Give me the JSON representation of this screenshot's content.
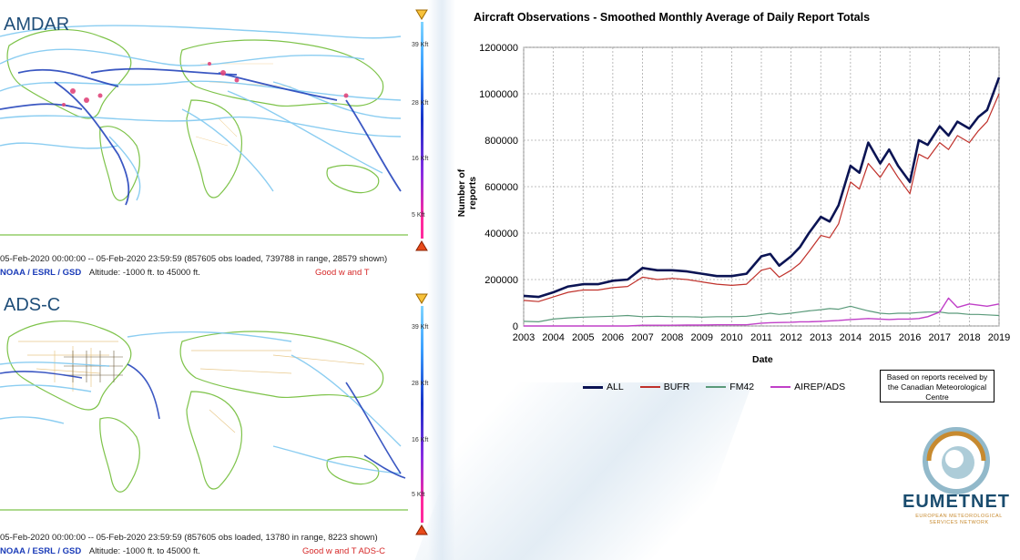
{
  "maps": [
    {
      "title": "AMDAR",
      "meta_line_1": "05-Feb-2020 00:00:00 -- 05-Feb-2020 23:59:59 (857605 obs loaded, 739788 in range, 28579 shown)",
      "source": "NOAA / ESRL / GSD",
      "altitude": "Altitude: -1000 ft. to 45000 ft.",
      "quality": "Good w and T",
      "alt_labels": [
        "39 Kft",
        "28 Kft",
        "16 Kft",
        "5 Kft"
      ]
    },
    {
      "title": "ADS-C",
      "meta_line_1": "05-Feb-2020 00:00:00 -- 05-Feb-2020 23:59:59 (857605 obs loaded, 13780 in range, 8223 shown)",
      "source": "NOAA / ESRL / GSD",
      "altitude": "Altitude: -1000 ft. to 45000 ft.",
      "quality": "Good w and T ADS-C",
      "alt_labels": [
        "39 Kft",
        "28 Kft",
        "16 Kft",
        "5 Kft"
      ]
    }
  ],
  "note": {
    "line1": "Based on reports received by",
    "line2": "the Canadian Meteorological",
    "line3": "Centre"
  },
  "logo": {
    "name": "EUMETNET",
    "subtitle": "EUROPEAN METEOROLOGICAL SERVICES NETWORK"
  },
  "colors": {
    "ALL": "#0b1454",
    "BUFR": "#c0312b",
    "FM42": "#5a9a7a",
    "AIREP/ADS": "#c040c8",
    "map_land": "#7ec34a",
    "flight_light": "#7fc8f0",
    "flight_dark": "#1a3bb8"
  },
  "chart_data": {
    "type": "line",
    "title": "Aircraft Observations - Smoothed Monthly  Average of Daily Report Totals",
    "xlabel": "Date",
    "ylabel": "Number of reports",
    "xlim": [
      2003,
      2019
    ],
    "ylim": [
      0,
      1200000
    ],
    "x_ticks": [
      "2003",
      "2004",
      "2005",
      "2006",
      "2007",
      "2008",
      "2009",
      "2010",
      "2011",
      "2012",
      "2013",
      "2014",
      "2015",
      "2016",
      "2017",
      "2018",
      "2019"
    ],
    "y_ticks": [
      "0",
      "200000",
      "400000",
      "600000",
      "800000",
      "1000000",
      "1200000"
    ],
    "grid": true,
    "legend": "bottom",
    "x": [
      2003.0,
      2003.5,
      2004.0,
      2004.5,
      2005.0,
      2005.5,
      2006.0,
      2006.5,
      2007.0,
      2007.5,
      2008.0,
      2008.5,
      2009.0,
      2009.5,
      2010.0,
      2010.5,
      2011.0,
      2011.3,
      2011.6,
      2012.0,
      2012.3,
      2012.6,
      2013.0,
      2013.3,
      2013.6,
      2014.0,
      2014.3,
      2014.6,
      2015.0,
      2015.3,
      2015.6,
      2016.0,
      2016.3,
      2016.6,
      2017.0,
      2017.3,
      2017.6,
      2018.0,
      2018.3,
      2018.6,
      2019.0
    ],
    "series": [
      {
        "name": "ALL",
        "values": [
          130000,
          125000,
          145000,
          170000,
          180000,
          180000,
          195000,
          200000,
          250000,
          240000,
          240000,
          235000,
          225000,
          215000,
          215000,
          225000,
          300000,
          310000,
          260000,
          300000,
          340000,
          400000,
          470000,
          450000,
          520000,
          690000,
          660000,
          790000,
          700000,
          760000,
          690000,
          620000,
          800000,
          780000,
          860000,
          820000,
          880000,
          850000,
          900000,
          930000,
          1070000
        ]
      },
      {
        "name": "BUFR",
        "values": [
          110000,
          105000,
          125000,
          145000,
          155000,
          155000,
          165000,
          170000,
          210000,
          200000,
          205000,
          200000,
          190000,
          180000,
          175000,
          180000,
          240000,
          250000,
          210000,
          240000,
          270000,
          320000,
          390000,
          380000,
          440000,
          620000,
          590000,
          700000,
          640000,
          700000,
          640000,
          570000,
          740000,
          720000,
          790000,
          760000,
          820000,
          790000,
          840000,
          880000,
          1000000
        ]
      },
      {
        "name": "FM42",
        "values": [
          20000,
          18000,
          30000,
          35000,
          38000,
          40000,
          42000,
          45000,
          40000,
          42000,
          40000,
          40000,
          38000,
          40000,
          40000,
          42000,
          50000,
          55000,
          50000,
          55000,
          60000,
          65000,
          70000,
          75000,
          72000,
          85000,
          75000,
          65000,
          55000,
          52000,
          55000,
          55000,
          58000,
          60000,
          60000,
          55000,
          55000,
          50000,
          50000,
          48000,
          45000
        ]
      },
      {
        "name": "AIREP/ADS",
        "values": [
          0,
          0,
          0,
          0,
          0,
          0,
          0,
          0,
          3000,
          3000,
          3000,
          4000,
          4000,
          5000,
          5000,
          5000,
          12000,
          14000,
          15000,
          16000,
          18000,
          18000,
          20000,
          22000,
          24000,
          28000,
          30000,
          32000,
          30000,
          28000,
          30000,
          30000,
          32000,
          40000,
          60000,
          120000,
          80000,
          95000,
          90000,
          85000,
          95000
        ]
      }
    ]
  }
}
